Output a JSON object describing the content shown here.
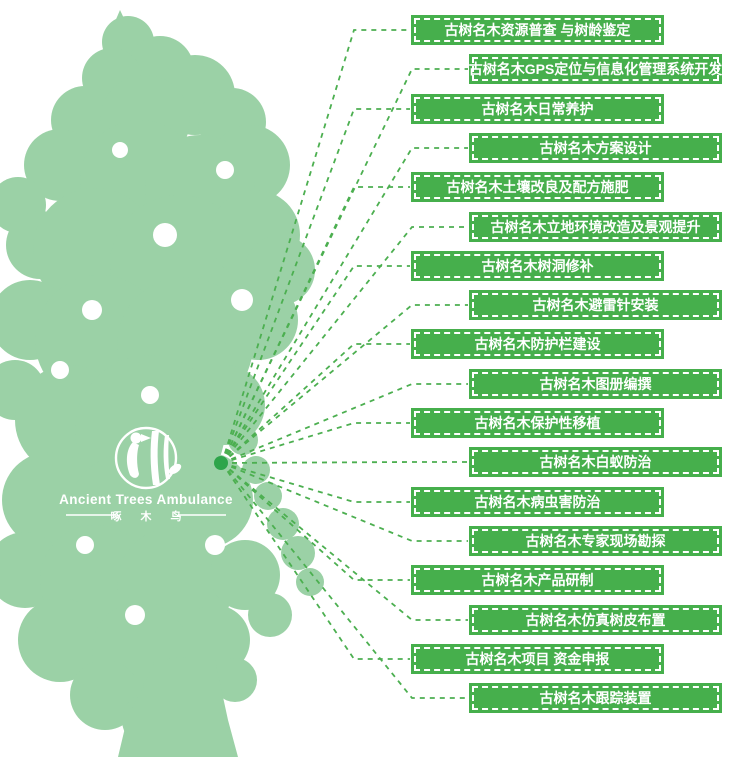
{
  "logo": {
    "icon": "woodpecker-logo-icon",
    "title_en": "Ancient Trees Ambulance",
    "title_cn": "啄 木 鸟"
  },
  "colors": {
    "tree_green": "#9BD1A6",
    "box_green": "#46AF4C",
    "line_green": "#4CAF50",
    "dot_green": "#2EA54A",
    "label_white": "#FFFFFF"
  },
  "services": [
    {
      "label": "古树名木资源普查 与树龄鉴定"
    },
    {
      "label": "古树名木GPS定位与信息化管理系统开发"
    },
    {
      "label": "古树名木日常养护"
    },
    {
      "label": "古树名木方案设计"
    },
    {
      "label": "古树名木土壤改良及配方施肥"
    },
    {
      "label": "古树名木立地环境改造及景观提升"
    },
    {
      "label": "古树名木树洞修补"
    },
    {
      "label": "古树名木避雷针安装"
    },
    {
      "label": "古树名木防护栏建设"
    },
    {
      "label": "古树名木图册编撰"
    },
    {
      "label": "古树名木保护性移植"
    },
    {
      "label": "古树名木白蚁防治"
    },
    {
      "label": "古树名木病虫害防治"
    },
    {
      "label": "古树名木专家现场勘探"
    },
    {
      "label": "古树名木产品研制"
    },
    {
      "label": "古树名木仿真树皮布置"
    },
    {
      "label": "古树名木项目 资金申报"
    },
    {
      "label": "古树名木跟踪装置"
    }
  ]
}
